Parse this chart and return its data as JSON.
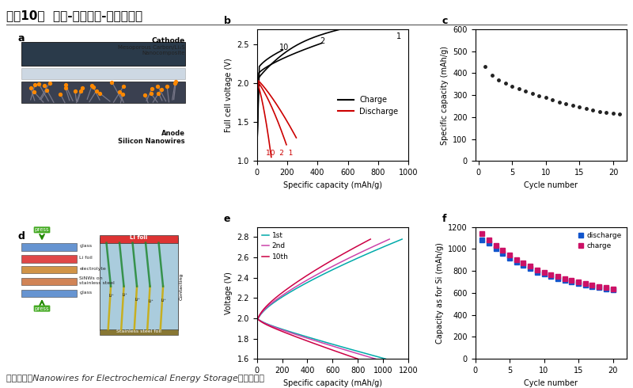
{
  "title": "图表10：  锂箔-硅纳米线-硫正极电池",
  "title_fontsize": 11,
  "footer": "资料来源：Nanowires for Electrochemical Energy Storage，中信建投",
  "footer_fontsize": 8,
  "panel_b": {
    "label": "b",
    "xlabel": "Specific capacity (mAh/g)",
    "ylabel": "Full cell voltage (V)",
    "xlim": [
      0,
      1000
    ],
    "ylim": [
      1.0,
      2.7
    ],
    "yticks": [
      1.0,
      1.5,
      2.0,
      2.5
    ],
    "xticks": [
      0,
      200,
      400,
      600,
      800,
      1000
    ],
    "charge_color": "#000000",
    "discharge_color": "#cc0000",
    "legend_charge": "Charge",
    "legend_discharge": "Discharge"
  },
  "panel_c": {
    "label": "c",
    "xlabel": "Cycle number",
    "ylabel": "Specific capacity (mAh/g)",
    "xlim": [
      -0.5,
      22
    ],
    "ylim": [
      0,
      600
    ],
    "yticks": [
      0,
      100,
      200,
      300,
      400,
      500,
      600
    ],
    "xticks": [
      0,
      5,
      10,
      15,
      20
    ],
    "dot_color": "#222222",
    "cycles": [
      1,
      2,
      3,
      4,
      5,
      6,
      7,
      8,
      9,
      10,
      11,
      12,
      13,
      14,
      15,
      16,
      17,
      18,
      19,
      20,
      21
    ],
    "capacities": [
      430,
      390,
      370,
      355,
      340,
      330,
      318,
      308,
      298,
      288,
      278,
      268,
      260,
      252,
      245,
      238,
      232,
      226,
      222,
      218,
      215
    ]
  },
  "panel_e": {
    "label": "e",
    "xlabel": "Specific capacity (mAh/g)",
    "ylabel": "Voltage (V)",
    "xlim": [
      0,
      1200
    ],
    "ylim": [
      1.6,
      2.9
    ],
    "yticks": [
      1.6,
      1.8,
      2.0,
      2.2,
      2.4,
      2.6,
      2.8
    ],
    "xticks": [
      0,
      200,
      400,
      600,
      800,
      1000,
      1200
    ],
    "color_1st": "#00aaaa",
    "color_2nd": "#cc44aa",
    "color_10th": "#cc0044",
    "legend_1st": "1st",
    "legend_2nd": "2nd",
    "legend_10th": "10th"
  },
  "panel_f": {
    "label": "f",
    "xlabel": "Cycle number",
    "ylabel": "Capacity as for Si (mAh/g)",
    "xlim": [
      0,
      22
    ],
    "ylim": [
      0,
      1200
    ],
    "yticks": [
      0,
      200,
      400,
      600,
      800,
      1000,
      1200
    ],
    "xticks": [
      0,
      5,
      10,
      15,
      20
    ],
    "discharge_color": "#1155cc",
    "charge_color": "#cc1166",
    "legend_discharge": "discharge",
    "legend_charge": "charge",
    "cycles": [
      1,
      2,
      3,
      4,
      5,
      6,
      7,
      8,
      9,
      10,
      11,
      12,
      13,
      14,
      15,
      16,
      17,
      18,
      19,
      20
    ],
    "discharge_cap": [
      1080,
      1050,
      1000,
      960,
      920,
      880,
      850,
      820,
      790,
      770,
      750,
      730,
      715,
      700,
      685,
      672,
      660,
      648,
      638,
      628
    ],
    "charge_cap": [
      1140,
      1080,
      1030,
      985,
      945,
      905,
      872,
      842,
      812,
      790,
      768,
      748,
      730,
      714,
      700,
      685,
      672,
      660,
      648,
      638
    ]
  }
}
